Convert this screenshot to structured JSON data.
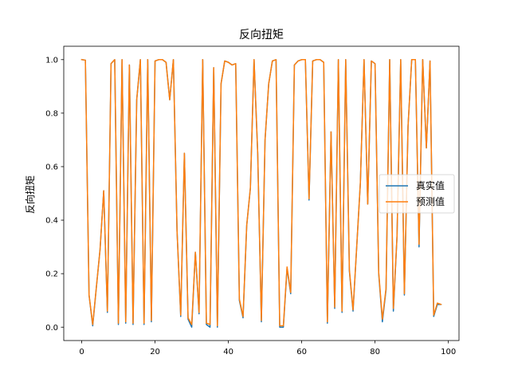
{
  "chart_data": {
    "type": "line",
    "title": "反向扭矩",
    "xlabel": "",
    "ylabel": "反向扭矩",
    "xlim": [
      -4.9,
      102.9
    ],
    "ylim": [
      -0.05,
      1.05
    ],
    "xticks": [
      0,
      20,
      40,
      60,
      80,
      100
    ],
    "yticks": [
      0.0,
      0.2,
      0.4,
      0.6,
      0.8,
      1.0
    ],
    "xtick_labels": [
      "0",
      "20",
      "40",
      "60",
      "80",
      "100"
    ],
    "ytick_labels": [
      "0.0",
      "0.2",
      "0.4",
      "0.6",
      "0.8",
      "1.0"
    ],
    "grid": false,
    "legend_position": "center-right",
    "x": [
      0,
      1,
      2,
      3,
      4,
      5,
      6,
      7,
      8,
      9,
      10,
      11,
      12,
      13,
      14,
      15,
      16,
      17,
      18,
      19,
      20,
      21,
      22,
      23,
      24,
      25,
      26,
      27,
      28,
      29,
      30,
      31,
      32,
      33,
      34,
      35,
      36,
      37,
      38,
      39,
      40,
      41,
      42,
      43,
      44,
      45,
      46,
      47,
      48,
      49,
      50,
      51,
      52,
      53,
      54,
      55,
      56,
      57,
      58,
      59,
      60,
      61,
      62,
      63,
      64,
      65,
      66,
      67,
      68,
      69,
      70,
      71,
      72,
      73,
      74,
      75,
      76,
      77,
      78,
      79,
      80,
      81,
      82,
      83,
      84,
      85,
      86,
      87,
      88,
      89,
      90,
      91,
      92,
      93,
      94,
      95,
      96,
      97,
      98
    ],
    "series": [
      {
        "name": "真实值",
        "color": "#1f77b4",
        "values": [
          1.0,
          0.998,
          0.12,
          0.005,
          0.15,
          0.29,
          0.51,
          0.055,
          0.985,
          1.0,
          0.01,
          1.0,
          0.015,
          0.98,
          0.01,
          0.85,
          1.0,
          0.01,
          1.0,
          0.02,
          0.995,
          1.0,
          1.0,
          0.99,
          0.85,
          1.0,
          0.36,
          0.04,
          0.65,
          0.03,
          0.0,
          0.28,
          0.05,
          1.0,
          0.01,
          0.0,
          0.97,
          0.0,
          0.91,
          0.995,
          0.99,
          0.98,
          0.985,
          0.1,
          0.035,
          0.38,
          0.52,
          1.0,
          0.65,
          0.02,
          0.7,
          0.91,
          0.995,
          1.0,
          0.0,
          0.0,
          0.22,
          0.125,
          0.98,
          0.995,
          1.0,
          1.0,
          0.475,
          0.995,
          1.0,
          1.0,
          0.99,
          0.015,
          0.73,
          0.07,
          1.0,
          0.055,
          1.0,
          0.21,
          0.06,
          0.3,
          0.54,
          1.0,
          0.46,
          0.995,
          0.985,
          0.2,
          0.02,
          0.14,
          1.0,
          0.06,
          0.34,
          1.0,
          0.12,
          0.75,
          1.0,
          1.0,
          0.3,
          1.0,
          0.67,
          0.995,
          0.04,
          0.085,
          0.085
        ]
      },
      {
        "name": "预测值",
        "color": "#ff7f0e",
        "values": [
          1.0,
          0.998,
          0.12,
          0.01,
          0.15,
          0.29,
          0.51,
          0.06,
          0.985,
          1.0,
          0.015,
          1.0,
          0.02,
          0.98,
          0.015,
          0.85,
          1.0,
          0.015,
          1.0,
          0.025,
          0.995,
          1.0,
          1.0,
          0.99,
          0.85,
          1.0,
          0.36,
          0.045,
          0.65,
          0.035,
          0.01,
          0.28,
          0.055,
          1.0,
          0.015,
          0.01,
          0.97,
          0.005,
          0.91,
          0.995,
          0.99,
          0.98,
          0.985,
          0.105,
          0.04,
          0.38,
          0.52,
          1.0,
          0.65,
          0.025,
          0.7,
          0.91,
          0.995,
          1.0,
          0.005,
          0.005,
          0.225,
          0.13,
          0.98,
          0.995,
          1.0,
          1.0,
          0.48,
          0.995,
          1.0,
          1.0,
          0.99,
          0.02,
          0.73,
          0.075,
          1.0,
          0.06,
          1.0,
          0.215,
          0.065,
          0.3,
          0.54,
          1.0,
          0.46,
          0.995,
          0.985,
          0.205,
          0.03,
          0.145,
          1.0,
          0.07,
          0.34,
          1.0,
          0.125,
          0.75,
          1.0,
          1.0,
          0.31,
          1.0,
          0.67,
          0.995,
          0.045,
          0.09,
          0.085
        ]
      }
    ]
  }
}
